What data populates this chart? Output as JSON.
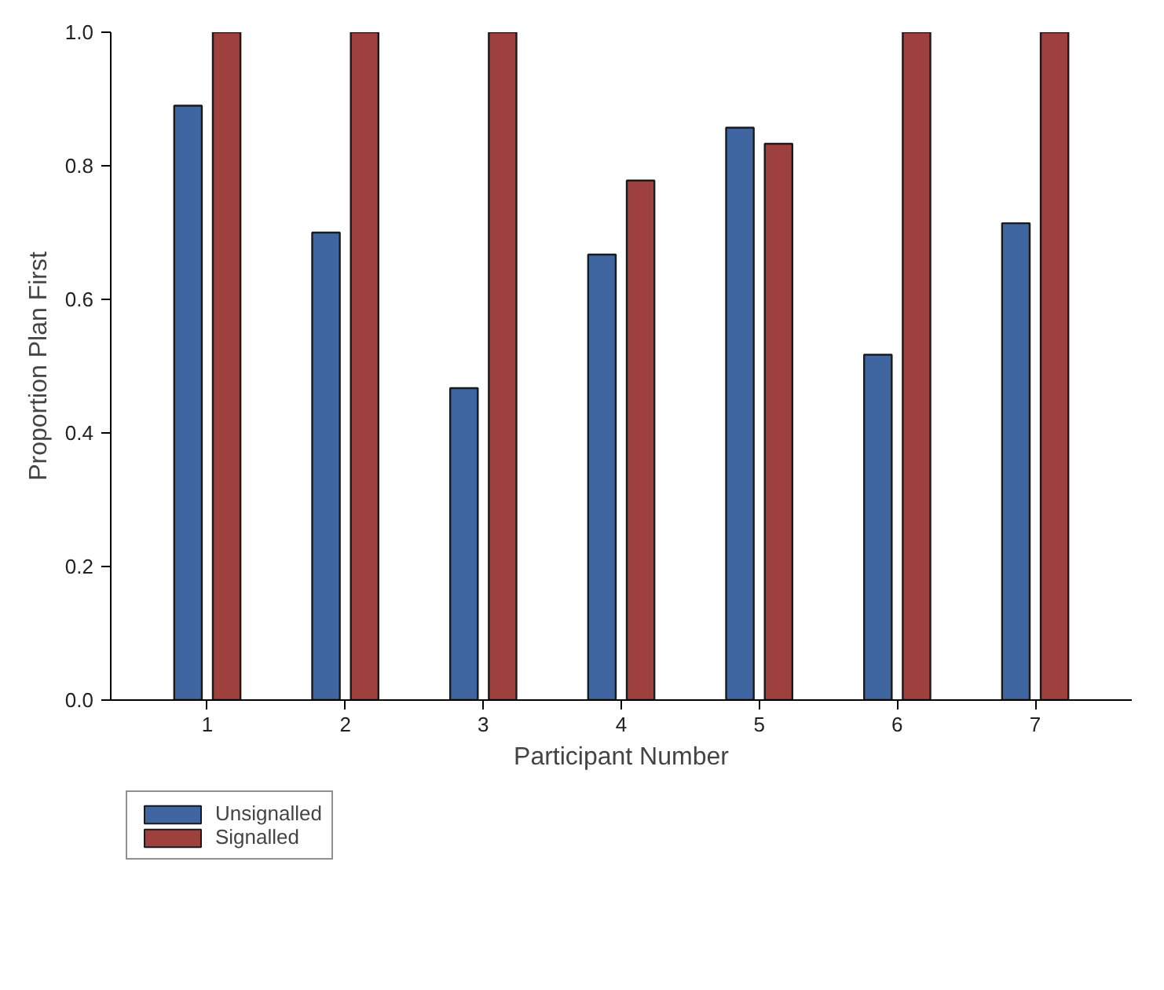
{
  "chart_data": {
    "type": "bar",
    "xlabel": "Participant Number",
    "ylabel": "Proportion Plan First",
    "categories": [
      "1",
      "2",
      "3",
      "4",
      "5",
      "6",
      "7"
    ],
    "series": [
      {
        "name": "Unsignalled",
        "color": "#3f66a0",
        "values": [
          0.89,
          0.7,
          0.467,
          0.667,
          0.857,
          0.517,
          0.714
        ]
      },
      {
        "name": "Signalled",
        "color": "#9e403e",
        "values": [
          1.0,
          1.0,
          1.0,
          0.778,
          0.833,
          1.0,
          1.0
        ]
      }
    ],
    "ylim": [
      0,
      1.0
    ],
    "yticks": [
      {
        "value": 0,
        "label": "0.0"
      },
      {
        "value": 0.2,
        "label": "0.2"
      },
      {
        "value": 0.4,
        "label": "0.4"
      },
      {
        "value": 0.6,
        "label": "0.6"
      },
      {
        "value": 0.8,
        "label": "0.8"
      },
      {
        "value": 1.0,
        "label": "1.0"
      }
    ],
    "grid": false,
    "legend": "bottom left"
  }
}
